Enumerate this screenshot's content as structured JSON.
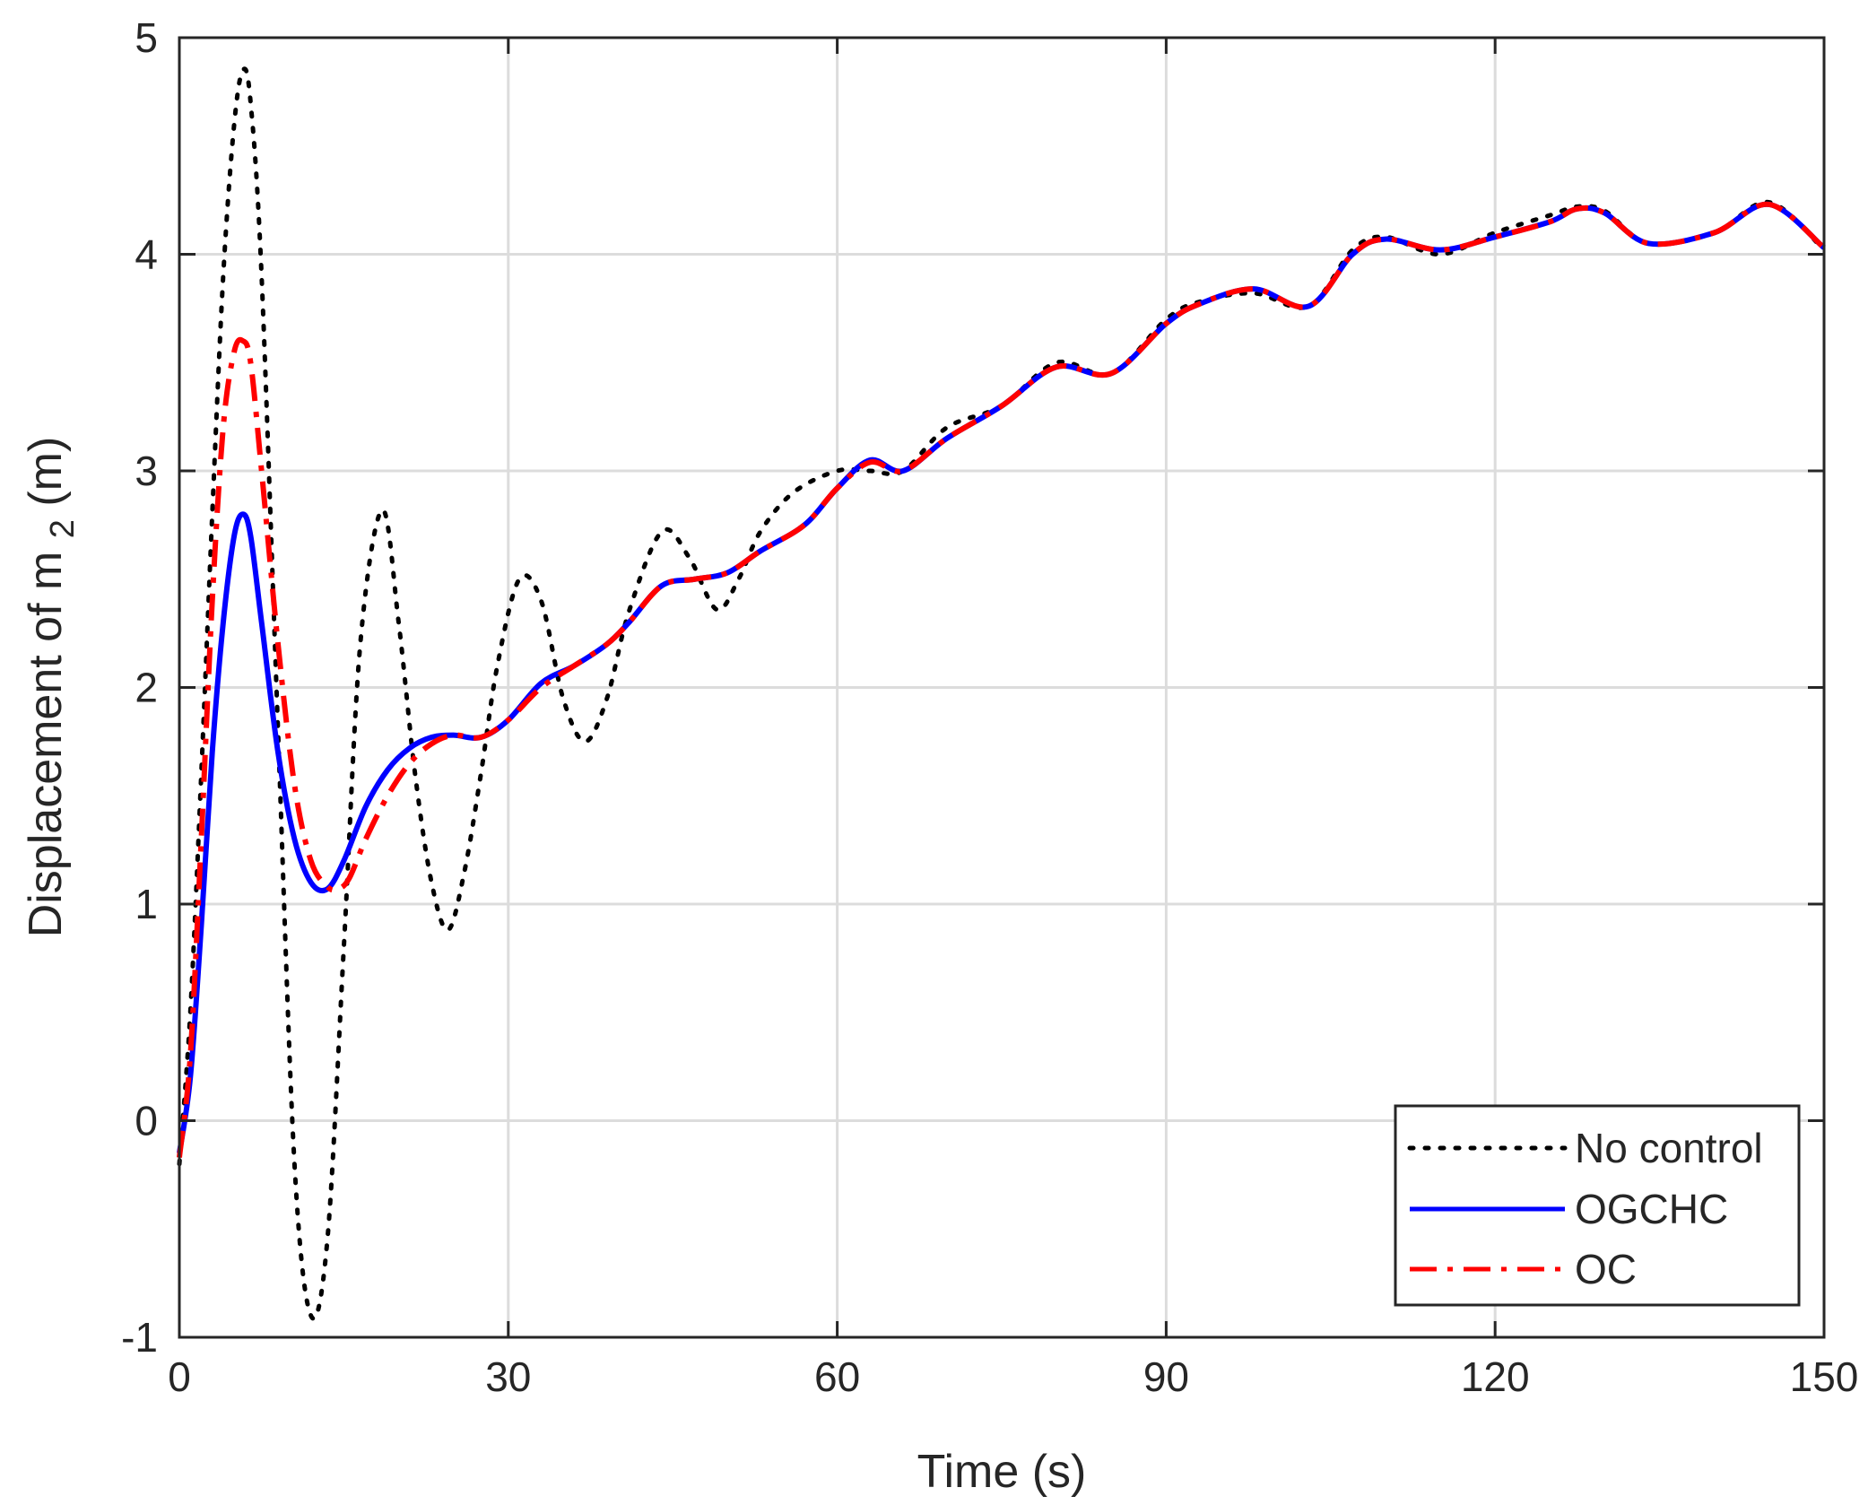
{
  "chart_data": {
    "type": "line",
    "xlabel": "Time (s)",
    "ylabel_main": "Displacement of m",
    "ylabel_sub": "2",
    "ylabel_unit": "(m)",
    "xlim": [
      0,
      150
    ],
    "ylim": [
      -1,
      5
    ],
    "xticks": [
      0,
      30,
      60,
      90,
      120,
      150
    ],
    "yticks": [
      -1,
      0,
      1,
      2,
      3,
      4,
      5
    ],
    "xtick_labels": [
      "0",
      "30",
      "60",
      "90",
      "120",
      "150"
    ],
    "ytick_labels": [
      "-1",
      "0",
      "1",
      "2",
      "3",
      "4",
      "5"
    ],
    "grid": true,
    "legend_position": "bottom-right",
    "series": [
      {
        "name": "No control",
        "color": "#000000",
        "style": "dotted",
        "x": [
          0,
          1,
          2,
          3,
          4,
          5,
          5.8,
          6.5,
          7.5,
          9,
          10.5,
          12,
          13.5,
          15,
          16.5,
          18.5,
          20,
          21.5,
          23,
          24.5,
          26,
          27.5,
          29,
          31,
          33,
          35,
          37,
          39,
          41,
          44,
          46.5,
          49,
          51,
          53,
          56,
          60,
          63,
          66,
          70,
          75,
          80,
          85,
          90,
          93,
          98,
          103,
          107,
          110,
          115,
          120,
          125,
          127.5,
          130,
          134,
          140,
          145,
          150
        ],
        "y": [
          -0.2,
          0.5,
          1.6,
          2.8,
          3.9,
          4.6,
          4.85,
          4.7,
          3.9,
          1.8,
          -0.2,
          -0.9,
          -0.55,
          0.8,
          2.2,
          2.82,
          2.3,
          1.6,
          1.1,
          0.88,
          1.15,
          1.6,
          2.1,
          2.5,
          2.4,
          1.95,
          1.75,
          1.95,
          2.35,
          2.72,
          2.6,
          2.36,
          2.5,
          2.72,
          2.9,
          3.0,
          3.0,
          3.0,
          3.2,
          3.3,
          3.5,
          3.45,
          3.7,
          3.78,
          3.82,
          3.76,
          4.02,
          4.08,
          4.0,
          4.1,
          4.18,
          4.22,
          4.2,
          4.05,
          4.1,
          4.24,
          4.02
        ]
      },
      {
        "name": "OGCHC",
        "color": "#0000ff",
        "style": "solid",
        "x": [
          0,
          1,
          2,
          3,
          4,
          5,
          5.8,
          6.5,
          7.5,
          9,
          10.5,
          12,
          13.5,
          15,
          17,
          19,
          21,
          23,
          25,
          27.5,
          30,
          33,
          36,
          39,
          41,
          44,
          47,
          50,
          53,
          57,
          60,
          63,
          66,
          70,
          75,
          80,
          85,
          90,
          93,
          98,
          103,
          107,
          110,
          115,
          120,
          125,
          127.5,
          130,
          134,
          140,
          145,
          150
        ],
        "y": [
          -0.15,
          0.2,
          0.9,
          1.7,
          2.3,
          2.7,
          2.8,
          2.7,
          2.3,
          1.7,
          1.3,
          1.1,
          1.07,
          1.2,
          1.45,
          1.62,
          1.72,
          1.77,
          1.78,
          1.77,
          1.85,
          2.02,
          2.1,
          2.2,
          2.3,
          2.47,
          2.5,
          2.53,
          2.63,
          2.75,
          2.92,
          3.05,
          3.0,
          3.15,
          3.3,
          3.48,
          3.45,
          3.68,
          3.77,
          3.84,
          3.76,
          4.0,
          4.07,
          4.02,
          4.08,
          4.15,
          4.21,
          4.19,
          4.05,
          4.1,
          4.23,
          4.03
        ]
      },
      {
        "name": "OC",
        "color": "#ff0000",
        "style": "dashdot",
        "x": [
          0,
          1,
          2,
          3,
          4,
          5,
          5.8,
          6.5,
          7.5,
          9,
          10.5,
          12,
          13.5,
          14.5,
          15.5,
          17,
          19,
          21,
          23,
          25,
          27.5,
          30,
          33,
          36,
          39,
          41,
          44,
          47,
          50,
          53,
          57,
          60,
          63,
          66,
          70,
          75,
          80,
          85,
          90,
          93,
          98,
          103,
          107,
          110,
          115,
          120,
          125,
          127.5,
          130,
          134,
          140,
          145,
          150
        ],
        "y": [
          -0.17,
          0.3,
          1.3,
          2.4,
          3.2,
          3.55,
          3.6,
          3.5,
          3.0,
          2.2,
          1.55,
          1.2,
          1.08,
          1.07,
          1.12,
          1.3,
          1.5,
          1.65,
          1.74,
          1.78,
          1.77,
          1.85,
          2.0,
          2.1,
          2.2,
          2.3,
          2.47,
          2.5,
          2.53,
          2.63,
          2.75,
          2.92,
          3.04,
          3.0,
          3.15,
          3.3,
          3.48,
          3.45,
          3.68,
          3.77,
          3.84,
          3.76,
          4.0,
          4.07,
          4.02,
          4.08,
          4.15,
          4.21,
          4.19,
          4.05,
          4.1,
          4.23,
          4.03
        ]
      }
    ]
  }
}
